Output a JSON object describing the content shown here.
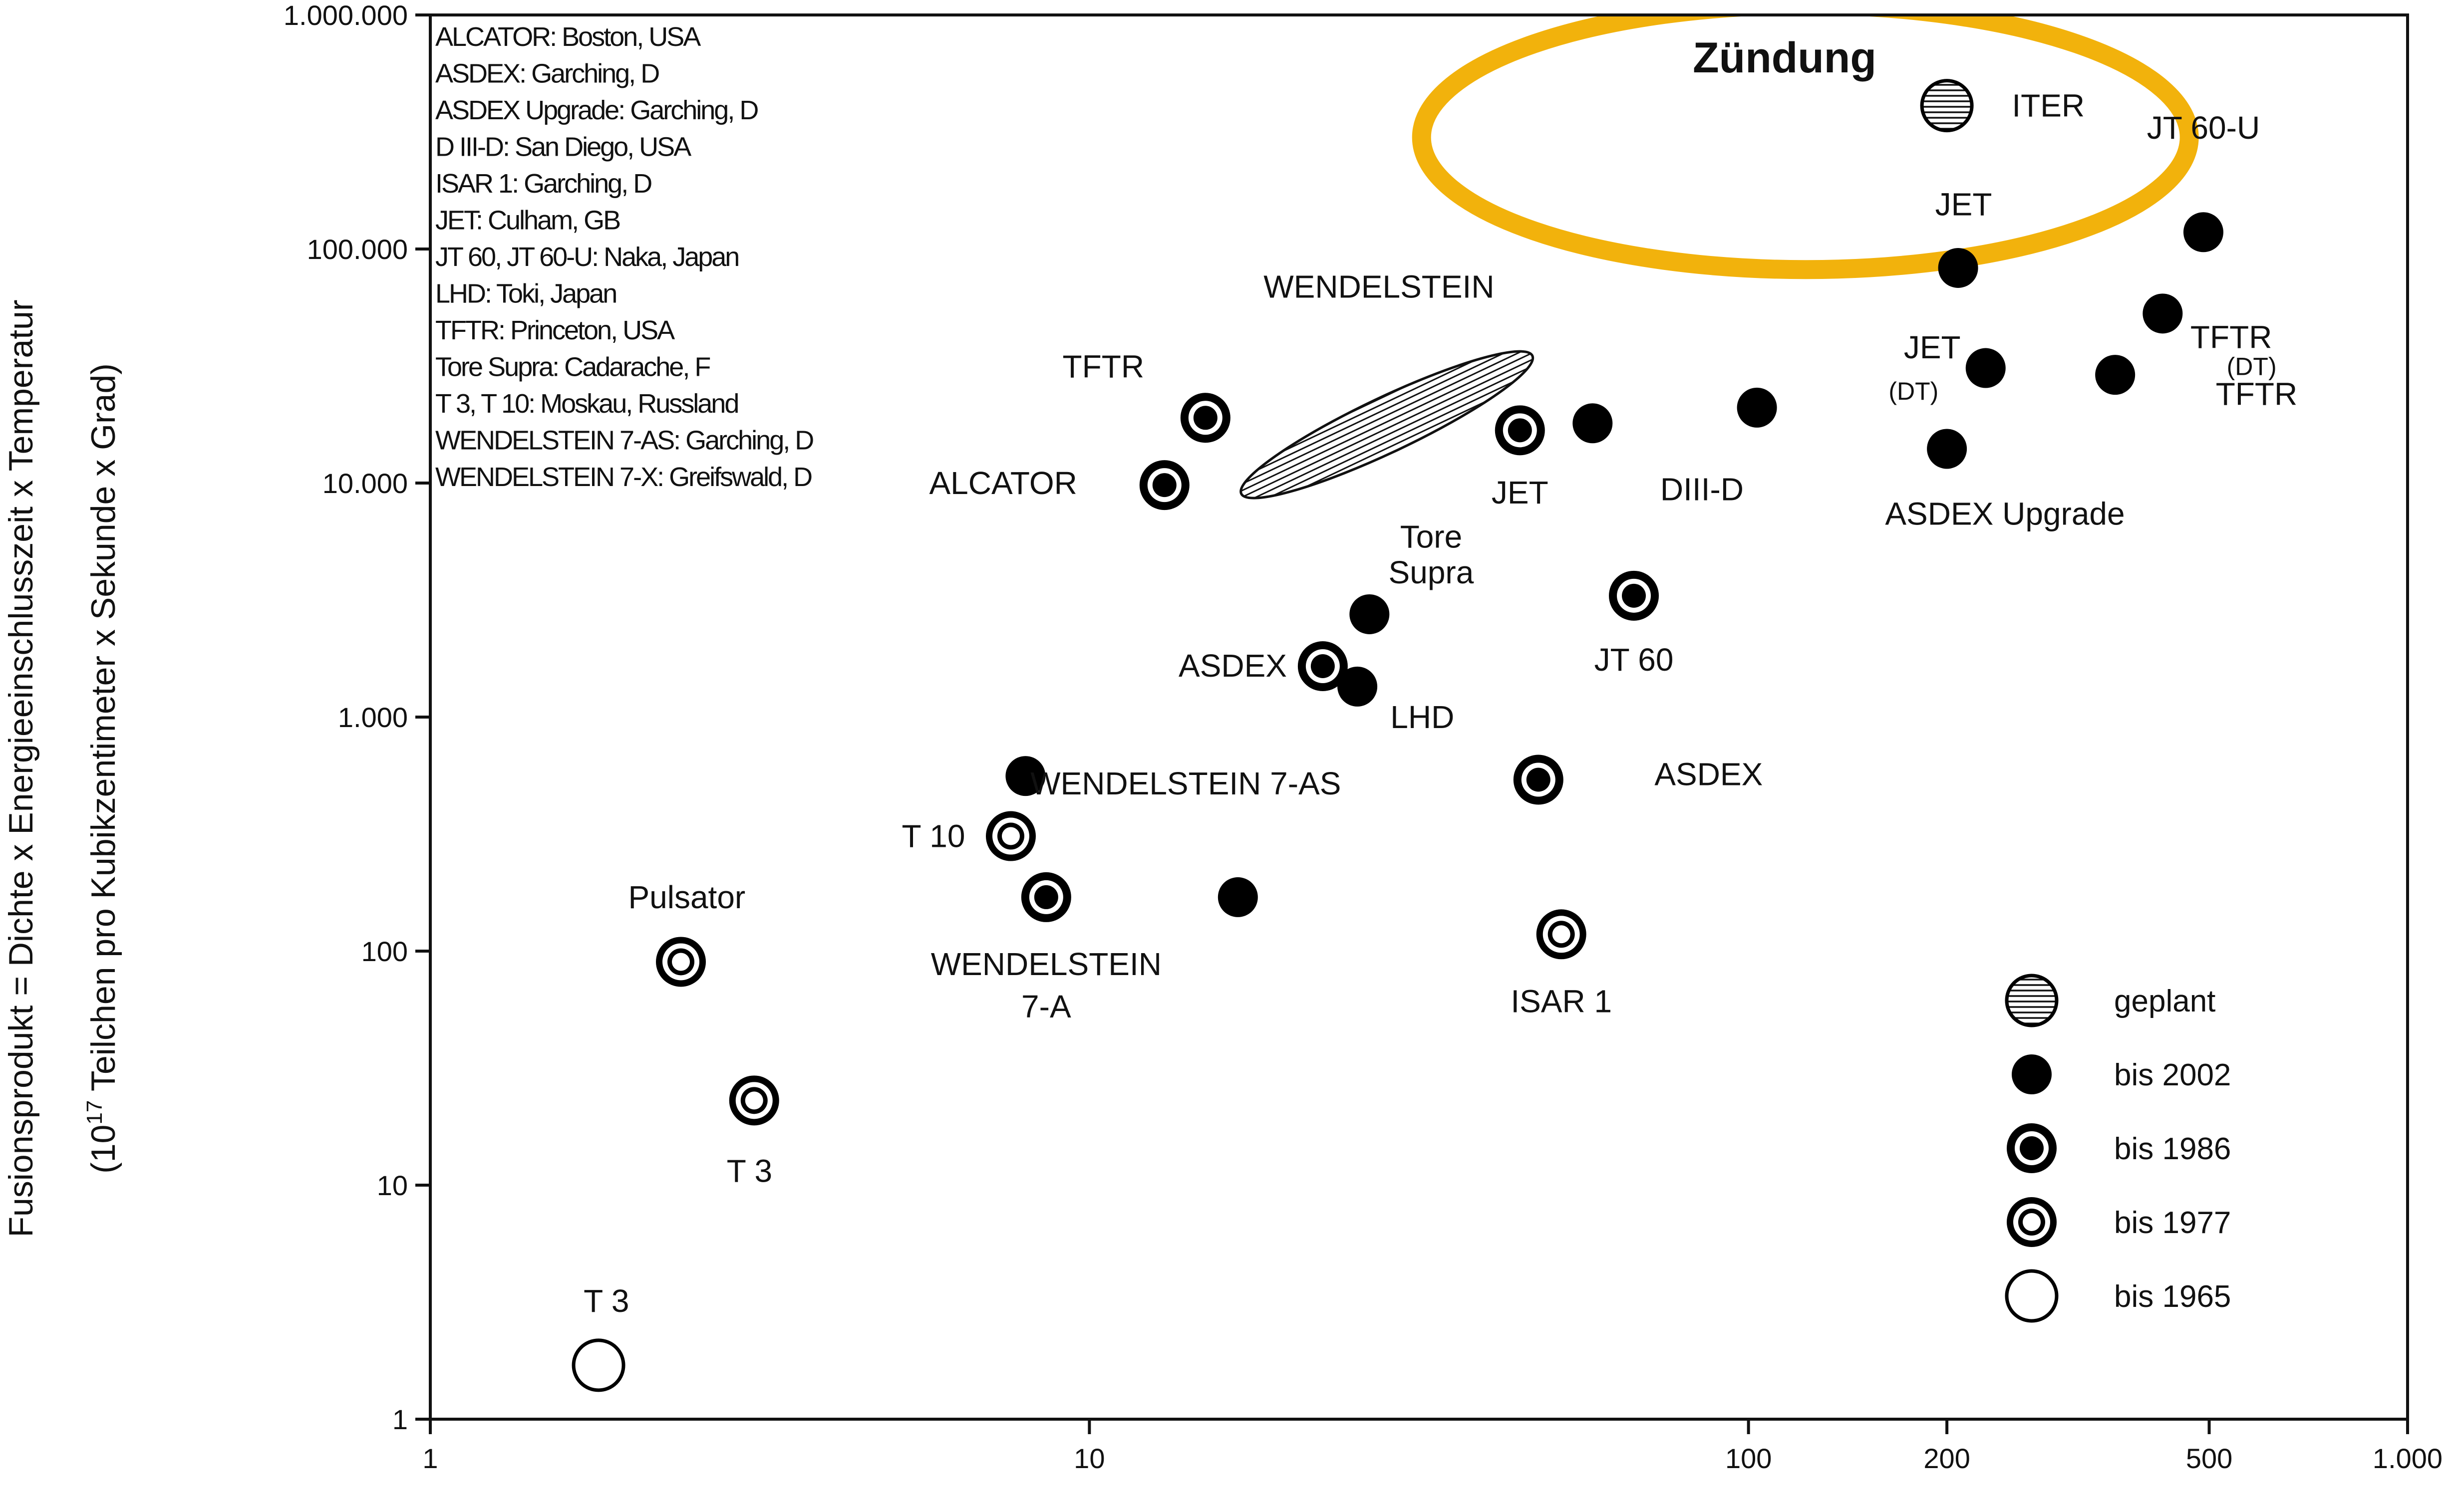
{
  "chart_data": {
    "type": "scatter",
    "title": "",
    "xlabel": "",
    "ylabel": "Fusionsprodukt  = Dichte x Energieeinschlusszeit x Temperatur",
    "ylabel_sub_prefix": "(10",
    "ylabel_sub_exp": "17",
    "ylabel_sub_suffix": " Teilchen pro Kubikzentimeter x Sekunde x Grad)",
    "x_scale": "log",
    "y_scale": "log",
    "xlim": [
      1,
      1000
    ],
    "ylim": [
      1,
      1000000
    ],
    "x_ticks": [
      {
        "v": 1,
        "label": "1"
      },
      {
        "v": 10,
        "label": "10"
      },
      {
        "v": 100,
        "label": "100"
      },
      {
        "v": 200,
        "label": "200"
      },
      {
        "v": 500,
        "label": "500"
      },
      {
        "v": 1000,
        "label": "1.000"
      }
    ],
    "y_ticks": [
      {
        "v": 1,
        "label": "1"
      },
      {
        "v": 10,
        "label": "10"
      },
      {
        "v": 100,
        "label": "100"
      },
      {
        "v": 1000,
        "label": "1.000"
      },
      {
        "v": 10000,
        "label": "10.000"
      },
      {
        "v": 100000,
        "label": "100.000"
      },
      {
        "v": 1000000,
        "label": "1.000.000"
      }
    ],
    "ignition_label": "Zündung",
    "ellipse_label": "WENDELSTEIN",
    "facilities": [
      "ALCATOR: Boston, USA",
      "ASDEX: Garching, D",
      "ASDEX Upgrade: Garching, D",
      "D III-D: San Diego, USA",
      "ISAR 1: Garching, D",
      "JET: Culham, GB",
      "JT 60, JT 60-U: Naka, Japan",
      "LHD: Toki, Japan",
      "TFTR: Princeton, USA",
      "Tore Supra: Cadarache, F",
      "T 3, T 10: Moskau, Russland",
      "WENDELSTEIN 7-AS: Garching, D",
      "WENDELSTEIN 7-X: Greifswald, D"
    ],
    "legend": [
      {
        "key": "geplant",
        "label": "geplant"
      },
      {
        "key": "bis2002",
        "label": "bis  2002"
      },
      {
        "key": "bis1986",
        "label": "bis  1986"
      },
      {
        "key": "bis1977",
        "label": "bis  1977"
      },
      {
        "key": "bis1965",
        "label": "bis  1965"
      }
    ],
    "colors": {
      "ignition": "#f2b20c",
      "marker": "#000000",
      "background": "#ffffff"
    },
    "points": [
      {
        "x": 1.8,
        "y": 1.7,
        "type": "bis1965",
        "label": "T 3"
      },
      {
        "x": 2.4,
        "y": 90,
        "type": "bis1977",
        "label": "Pulsator"
      },
      {
        "x": 3.1,
        "y": 23,
        "type": "bis1977",
        "label": "T 3"
      },
      {
        "x": 7.6,
        "y": 310,
        "type": "bis1977",
        "label": "T 10"
      },
      {
        "x": 8.6,
        "y": 170,
        "type": "bis1986",
        "label": "WENDELSTEIN 7-A"
      },
      {
        "x": 8.0,
        "y": 560,
        "type": "bis2002",
        "label": ""
      },
      {
        "x": 16.8,
        "y": 170,
        "type": "bis2002",
        "label": "WENDELSTEIN 7-AS"
      },
      {
        "x": 13.0,
        "y": 9800,
        "type": "bis1986",
        "label": "ALCATOR"
      },
      {
        "x": 15.0,
        "y": 19000,
        "type": "bis1986",
        "label": "TFTR"
      },
      {
        "x": 22.6,
        "y": 1650,
        "type": "bis1986",
        "label": "ASDEX"
      },
      {
        "x": 26.6,
        "y": 2750,
        "type": "bis2002",
        "label": "Tore Supra"
      },
      {
        "x": 25.5,
        "y": 1350,
        "type": "bis2002",
        "label": "LHD"
      },
      {
        "x": 45.0,
        "y": 16800,
        "type": "bis1986",
        "label": "JET"
      },
      {
        "x": 58.0,
        "y": 18000,
        "type": "bis2002",
        "label": "DIII-D"
      },
      {
        "x": 67.0,
        "y": 3300,
        "type": "bis1986",
        "label": "JT 60"
      },
      {
        "x": 48.0,
        "y": 540,
        "type": "bis1986",
        "label": "ASDEX"
      },
      {
        "x": 52.0,
        "y": 118,
        "type": "bis1977",
        "label": "ISAR 1"
      },
      {
        "x": 103.0,
        "y": 21000,
        "type": "bis2002",
        "label": ""
      },
      {
        "x": 200.0,
        "y": 14000,
        "type": "bis2002",
        "label": "ASDEX Upgrade"
      },
      {
        "x": 229.0,
        "y": 31000,
        "type": "bis2002",
        "label": "JET (DT)"
      },
      {
        "x": 208.0,
        "y": 83000,
        "type": "bis2002",
        "label": "JET"
      },
      {
        "x": 360.0,
        "y": 29000,
        "type": "bis2002",
        "label": "TFTR"
      },
      {
        "x": 425.0,
        "y": 53000,
        "type": "bis2002",
        "label": "TFTR (DT)"
      },
      {
        "x": 490.0,
        "y": 118000,
        "type": "bis2002",
        "label": "JT 60-U"
      },
      {
        "x": 200.0,
        "y": 410000,
        "type": "geplant",
        "label": "ITER"
      }
    ],
    "point_labels": [
      {
        "text": "T 3",
        "x": 1.85,
        "y": 3.2
      },
      {
        "text": "Pulsator",
        "x": 2.45,
        "y": 170
      },
      {
        "text": "T 3",
        "x": 3.05,
        "y": 11.5
      },
      {
        "text": "T 10",
        "x": 5.8,
        "y": 310
      },
      {
        "text": "WENDELSTEIN 7-AS",
        "x": 14.0,
        "y": 520
      },
      {
        "text": "WENDELSTEIN",
        "x": 8.6,
        "y": 88
      },
      {
        "text": "7-A",
        "x": 8.6,
        "y": 58
      },
      {
        "text": "ALCATOR",
        "x": 7.4,
        "y": 10000
      },
      {
        "text": "TFTR",
        "x": 10.5,
        "y": 31500
      },
      {
        "text": "WENDELSTEIN",
        "x": 27.5,
        "y": 69000
      },
      {
        "text": "ASDEX",
        "x": 16.5,
        "y": 1660
      },
      {
        "text": "Tore",
        "x": 33.0,
        "y": 5900
      },
      {
        "text": "Supra",
        "x": 33.0,
        "y": 4150
      },
      {
        "text": "LHD",
        "x": 32.0,
        "y": 1000
      },
      {
        "text": "JET",
        "x": 45.0,
        "y": 9100
      },
      {
        "text": "DIII-D",
        "x": 85.0,
        "y": 9400
      },
      {
        "text": "JT 60",
        "x": 67.0,
        "y": 1760
      },
      {
        "text": "ASDEX",
        "x": 87.0,
        "y": 570
      },
      {
        "text": "ISAR 1",
        "x": 52.0,
        "y": 61
      },
      {
        "text": "ASDEX Upgrade",
        "x": 245.0,
        "y": 7400
      },
      {
        "text": "JET",
        "x": 190.0,
        "y": 38000
      },
      {
        "text": "JET",
        "x": 212.0,
        "y": 155000
      },
      {
        "text": "TFTR",
        "x": 540.0,
        "y": 42000
      },
      {
        "text": "JT 60-U",
        "x": 490.0,
        "y": 330000
      },
      {
        "text": "TFTR",
        "x": 590.0,
        "y": 24000
      },
      {
        "text": "ITER",
        "x": 285.0,
        "y": 410000
      }
    ],
    "point_sublabels": [
      {
        "text": "(DT)",
        "x": 178.0,
        "y": 24700
      },
      {
        "text": "(DT)",
        "x": 580.0,
        "y": 31500
      }
    ],
    "ellipse": {
      "center_x": 25.0,
      "center_y": 9000,
      "x_range": [
        17.0,
        47.0
      ],
      "y_range": [
        9000,
        35000
      ]
    },
    "ignition_region": {
      "center_x": 122.0,
      "center_y": 300000,
      "x_range": [
        39.0,
        570.0
      ]
    }
  }
}
